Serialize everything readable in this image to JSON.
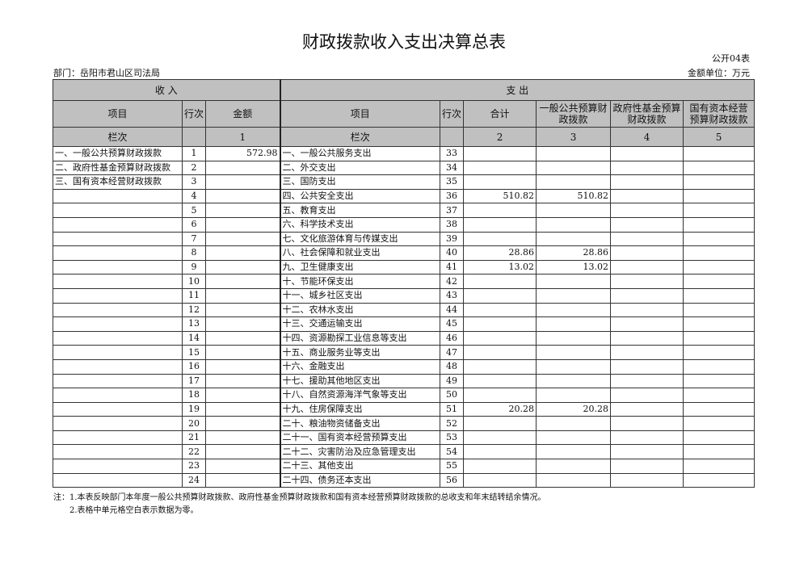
{
  "title": "财政拨款收入支出决算总表",
  "form_code": "公开04表",
  "department": "部门：岳阳市君山区司法局",
  "unit": "金额单位：万元",
  "header": {
    "income": "收        入",
    "expense": "支        出",
    "item": "项目",
    "row_no": "行次",
    "amount": "金额",
    "exp_item": "项目",
    "exp_row_no": "行次",
    "total": "合计",
    "general": "一般公共预算财政拨款",
    "fund": "政府性基金预算财政拨款",
    "state": "国有资本经营预算财政拨款",
    "col_label": "栏次",
    "col1": "1",
    "exp_col_label": "栏次",
    "col2": "2",
    "col3": "3",
    "col4": "4",
    "col5": "5"
  },
  "rows": [
    {
      "in_item": "一、一般公共预算财政拨款",
      "in_no": "1",
      "in_amt": "572.98",
      "ex_item": "一、一般公共服务支出",
      "ex_no": "33",
      "total": "",
      "general": "",
      "fund": "",
      "state": ""
    },
    {
      "in_item": "二、政府性基金预算财政拨款",
      "in_no": "2",
      "in_amt": "",
      "ex_item": "二、外交支出",
      "ex_no": "34",
      "total": "",
      "general": "",
      "fund": "",
      "state": ""
    },
    {
      "in_item": "三、国有资本经营财政拨款",
      "in_no": "3",
      "in_amt": "",
      "ex_item": "三、国防支出",
      "ex_no": "35",
      "total": "",
      "general": "",
      "fund": "",
      "state": ""
    },
    {
      "in_item": "",
      "in_no": "4",
      "in_amt": "",
      "ex_item": "四、公共安全支出",
      "ex_no": "36",
      "total": "510.82",
      "general": "510.82",
      "fund": "",
      "state": ""
    },
    {
      "in_item": "",
      "in_no": "5",
      "in_amt": "",
      "ex_item": "五、教育支出",
      "ex_no": "37",
      "total": "",
      "general": "",
      "fund": "",
      "state": ""
    },
    {
      "in_item": "",
      "in_no": "6",
      "in_amt": "",
      "ex_item": "六、科学技术支出",
      "ex_no": "38",
      "total": "",
      "general": "",
      "fund": "",
      "state": ""
    },
    {
      "in_item": "",
      "in_no": "7",
      "in_amt": "",
      "ex_item": "七、文化旅游体育与传媒支出",
      "ex_no": "39",
      "total": "",
      "general": "",
      "fund": "",
      "state": ""
    },
    {
      "in_item": "",
      "in_no": "8",
      "in_amt": "",
      "ex_item": "八、社会保障和就业支出",
      "ex_no": "40",
      "total": "28.86",
      "general": "28.86",
      "fund": "",
      "state": ""
    },
    {
      "in_item": "",
      "in_no": "9",
      "in_amt": "",
      "ex_item": "九、卫生健康支出",
      "ex_no": "41",
      "total": "13.02",
      "general": "13.02",
      "fund": "",
      "state": ""
    },
    {
      "in_item": "",
      "in_no": "10",
      "in_amt": "",
      "ex_item": "十、节能环保支出",
      "ex_no": "42",
      "total": "",
      "general": "",
      "fund": "",
      "state": ""
    },
    {
      "in_item": "",
      "in_no": "11",
      "in_amt": "",
      "ex_item": "十一、城乡社区支出",
      "ex_no": "43",
      "total": "",
      "general": "",
      "fund": "",
      "state": ""
    },
    {
      "in_item": "",
      "in_no": "12",
      "in_amt": "",
      "ex_item": "十二、农林水支出",
      "ex_no": "44",
      "total": "",
      "general": "",
      "fund": "",
      "state": ""
    },
    {
      "in_item": "",
      "in_no": "13",
      "in_amt": "",
      "ex_item": "十三、交通运输支出",
      "ex_no": "45",
      "total": "",
      "general": "",
      "fund": "",
      "state": ""
    },
    {
      "in_item": "",
      "in_no": "14",
      "in_amt": "",
      "ex_item": "十四、资源勘探工业信息等支出",
      "ex_no": "46",
      "total": "",
      "general": "",
      "fund": "",
      "state": ""
    },
    {
      "in_item": "",
      "in_no": "15",
      "in_amt": "",
      "ex_item": "十五、商业服务业等支出",
      "ex_no": "47",
      "total": "",
      "general": "",
      "fund": "",
      "state": ""
    },
    {
      "in_item": "",
      "in_no": "16",
      "in_amt": "",
      "ex_item": "十六、金融支出",
      "ex_no": "48",
      "total": "",
      "general": "",
      "fund": "",
      "state": ""
    },
    {
      "in_item": "",
      "in_no": "17",
      "in_amt": "",
      "ex_item": "十七、援助其他地区支出",
      "ex_no": "49",
      "total": "",
      "general": "",
      "fund": "",
      "state": ""
    },
    {
      "in_item": "",
      "in_no": "18",
      "in_amt": "",
      "ex_item": "十八、自然资源海洋气象等支出",
      "ex_no": "50",
      "total": "",
      "general": "",
      "fund": "",
      "state": ""
    },
    {
      "in_item": "",
      "in_no": "19",
      "in_amt": "",
      "ex_item": "十九、住房保障支出",
      "ex_no": "51",
      "total": "20.28",
      "general": "20.28",
      "fund": "",
      "state": ""
    },
    {
      "in_item": "",
      "in_no": "20",
      "in_amt": "",
      "ex_item": "二十、粮油物资储备支出",
      "ex_no": "52",
      "total": "",
      "general": "",
      "fund": "",
      "state": ""
    },
    {
      "in_item": "",
      "in_no": "21",
      "in_amt": "",
      "ex_item": "二十一、国有资本经营预算支出",
      "ex_no": "53",
      "total": "",
      "general": "",
      "fund": "",
      "state": ""
    },
    {
      "in_item": "",
      "in_no": "22",
      "in_amt": "",
      "ex_item": "二十二、灾害防治及应急管理支出",
      "ex_no": "54",
      "total": "",
      "general": "",
      "fund": "",
      "state": ""
    },
    {
      "in_item": "",
      "in_no": "23",
      "in_amt": "",
      "ex_item": "二十三、其他支出",
      "ex_no": "55",
      "total": "",
      "general": "",
      "fund": "",
      "state": ""
    },
    {
      "in_item": "",
      "in_no": "24",
      "in_amt": "",
      "ex_item": "二十四、债务还本支出",
      "ex_no": "56",
      "total": "",
      "general": "",
      "fund": "",
      "state": ""
    }
  ],
  "notes": [
    "注：1.本表反映部门本年度一般公共预算财政拨款、政府性基金预算财政拨款和国有资本经营预算财政拨款的总收支和年末结转结余情况。",
    "　　2.表格中单元格空白表示数据为零。"
  ]
}
